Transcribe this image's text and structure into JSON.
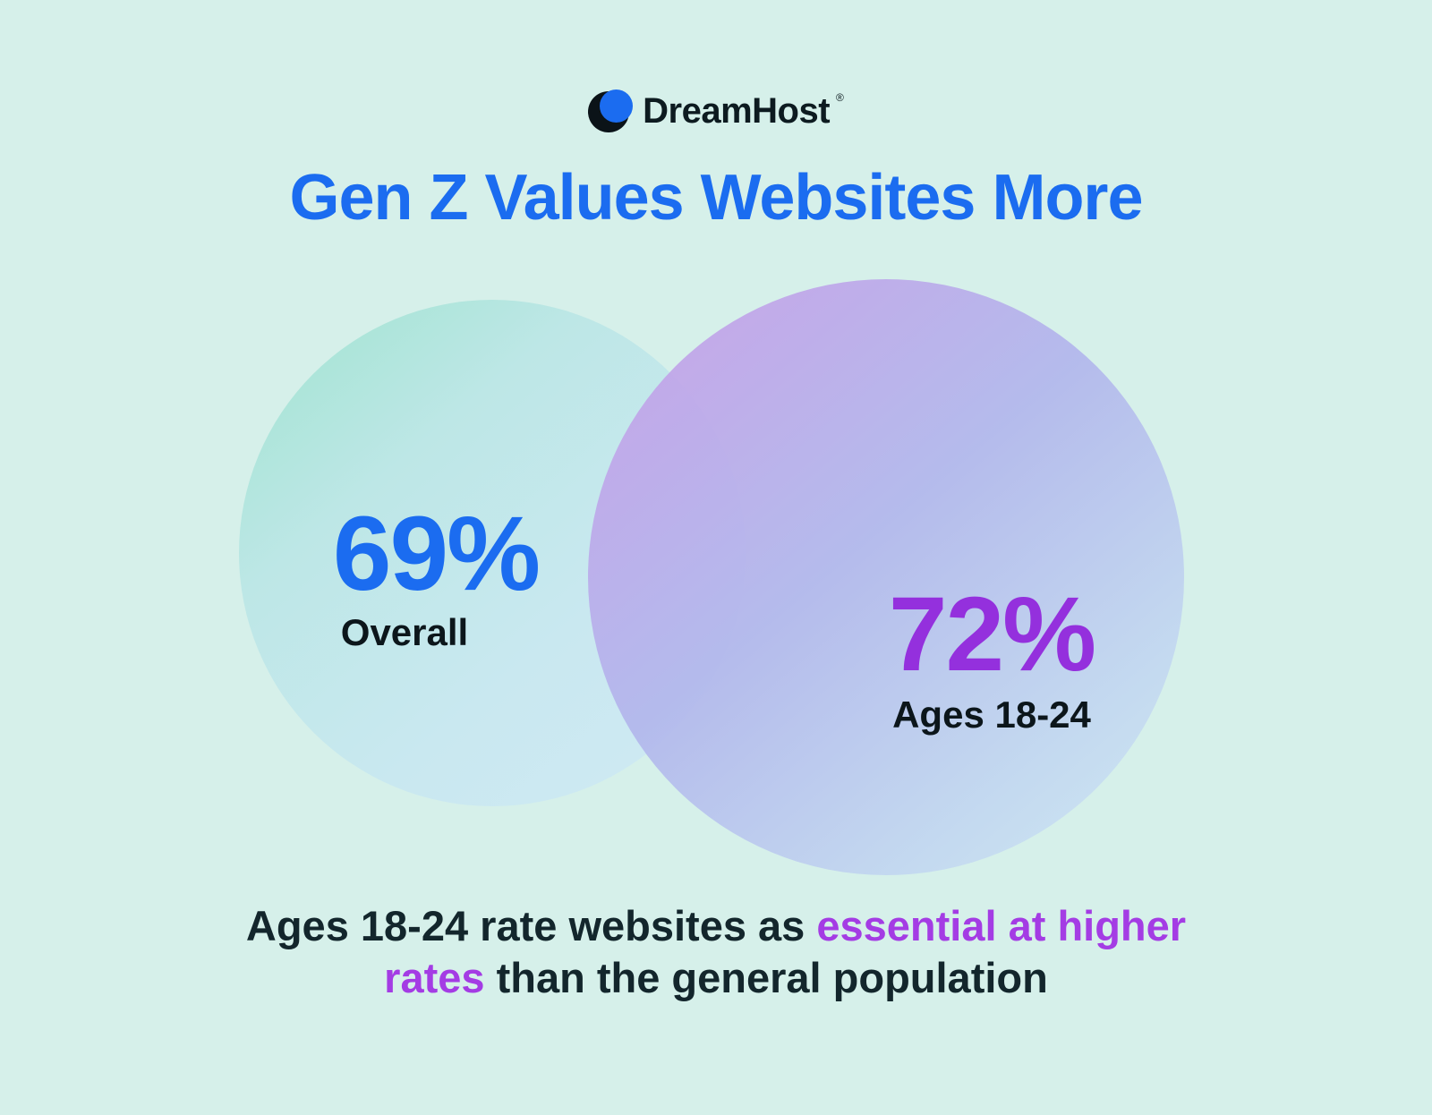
{
  "background_color": "#d6f0ea",
  "brand": {
    "name": "DreamHost",
    "registered_mark": "®",
    "icon_colors": {
      "moon": "#0b1318",
      "ball": "#1b6cf0"
    }
  },
  "title": {
    "text": "Gen Z Values Websites More",
    "color": "#1b6cf0"
  },
  "chart_data": {
    "type": "venn",
    "title": "Gen Z Values Websites More",
    "categories": [
      "Overall",
      "Ages 18-24"
    ],
    "values": [
      69,
      72
    ],
    "units": "%",
    "series": [
      {
        "name": "Overall",
        "value": 69,
        "value_label": "69%",
        "value_color": "#1b6cf0",
        "circle_gradient": [
          "#9fe3cf",
          "#d0eaf4"
        ]
      },
      {
        "name": "Ages 18-24",
        "value": 72,
        "value_label": "72%",
        "value_color": "#9430dd",
        "circle_gradient": [
          "#c99fe6",
          "#cfe8f4"
        ]
      }
    ],
    "annotation": "Ages 18-24 rate websites as essential at higher rates than the general population",
    "legend_position": "inside-circles",
    "grid": false
  },
  "footer": {
    "line1": [
      {
        "text": "Ages 18-24 rate websites as ",
        "emphasis": false
      },
      {
        "text": "essential at higher",
        "emphasis": true
      }
    ],
    "line2": [
      {
        "text": "rates",
        "emphasis": true
      },
      {
        "text": " than the general population",
        "emphasis": false
      }
    ],
    "emphasis_color": "#a43ce4",
    "text_color": "#13262c"
  }
}
